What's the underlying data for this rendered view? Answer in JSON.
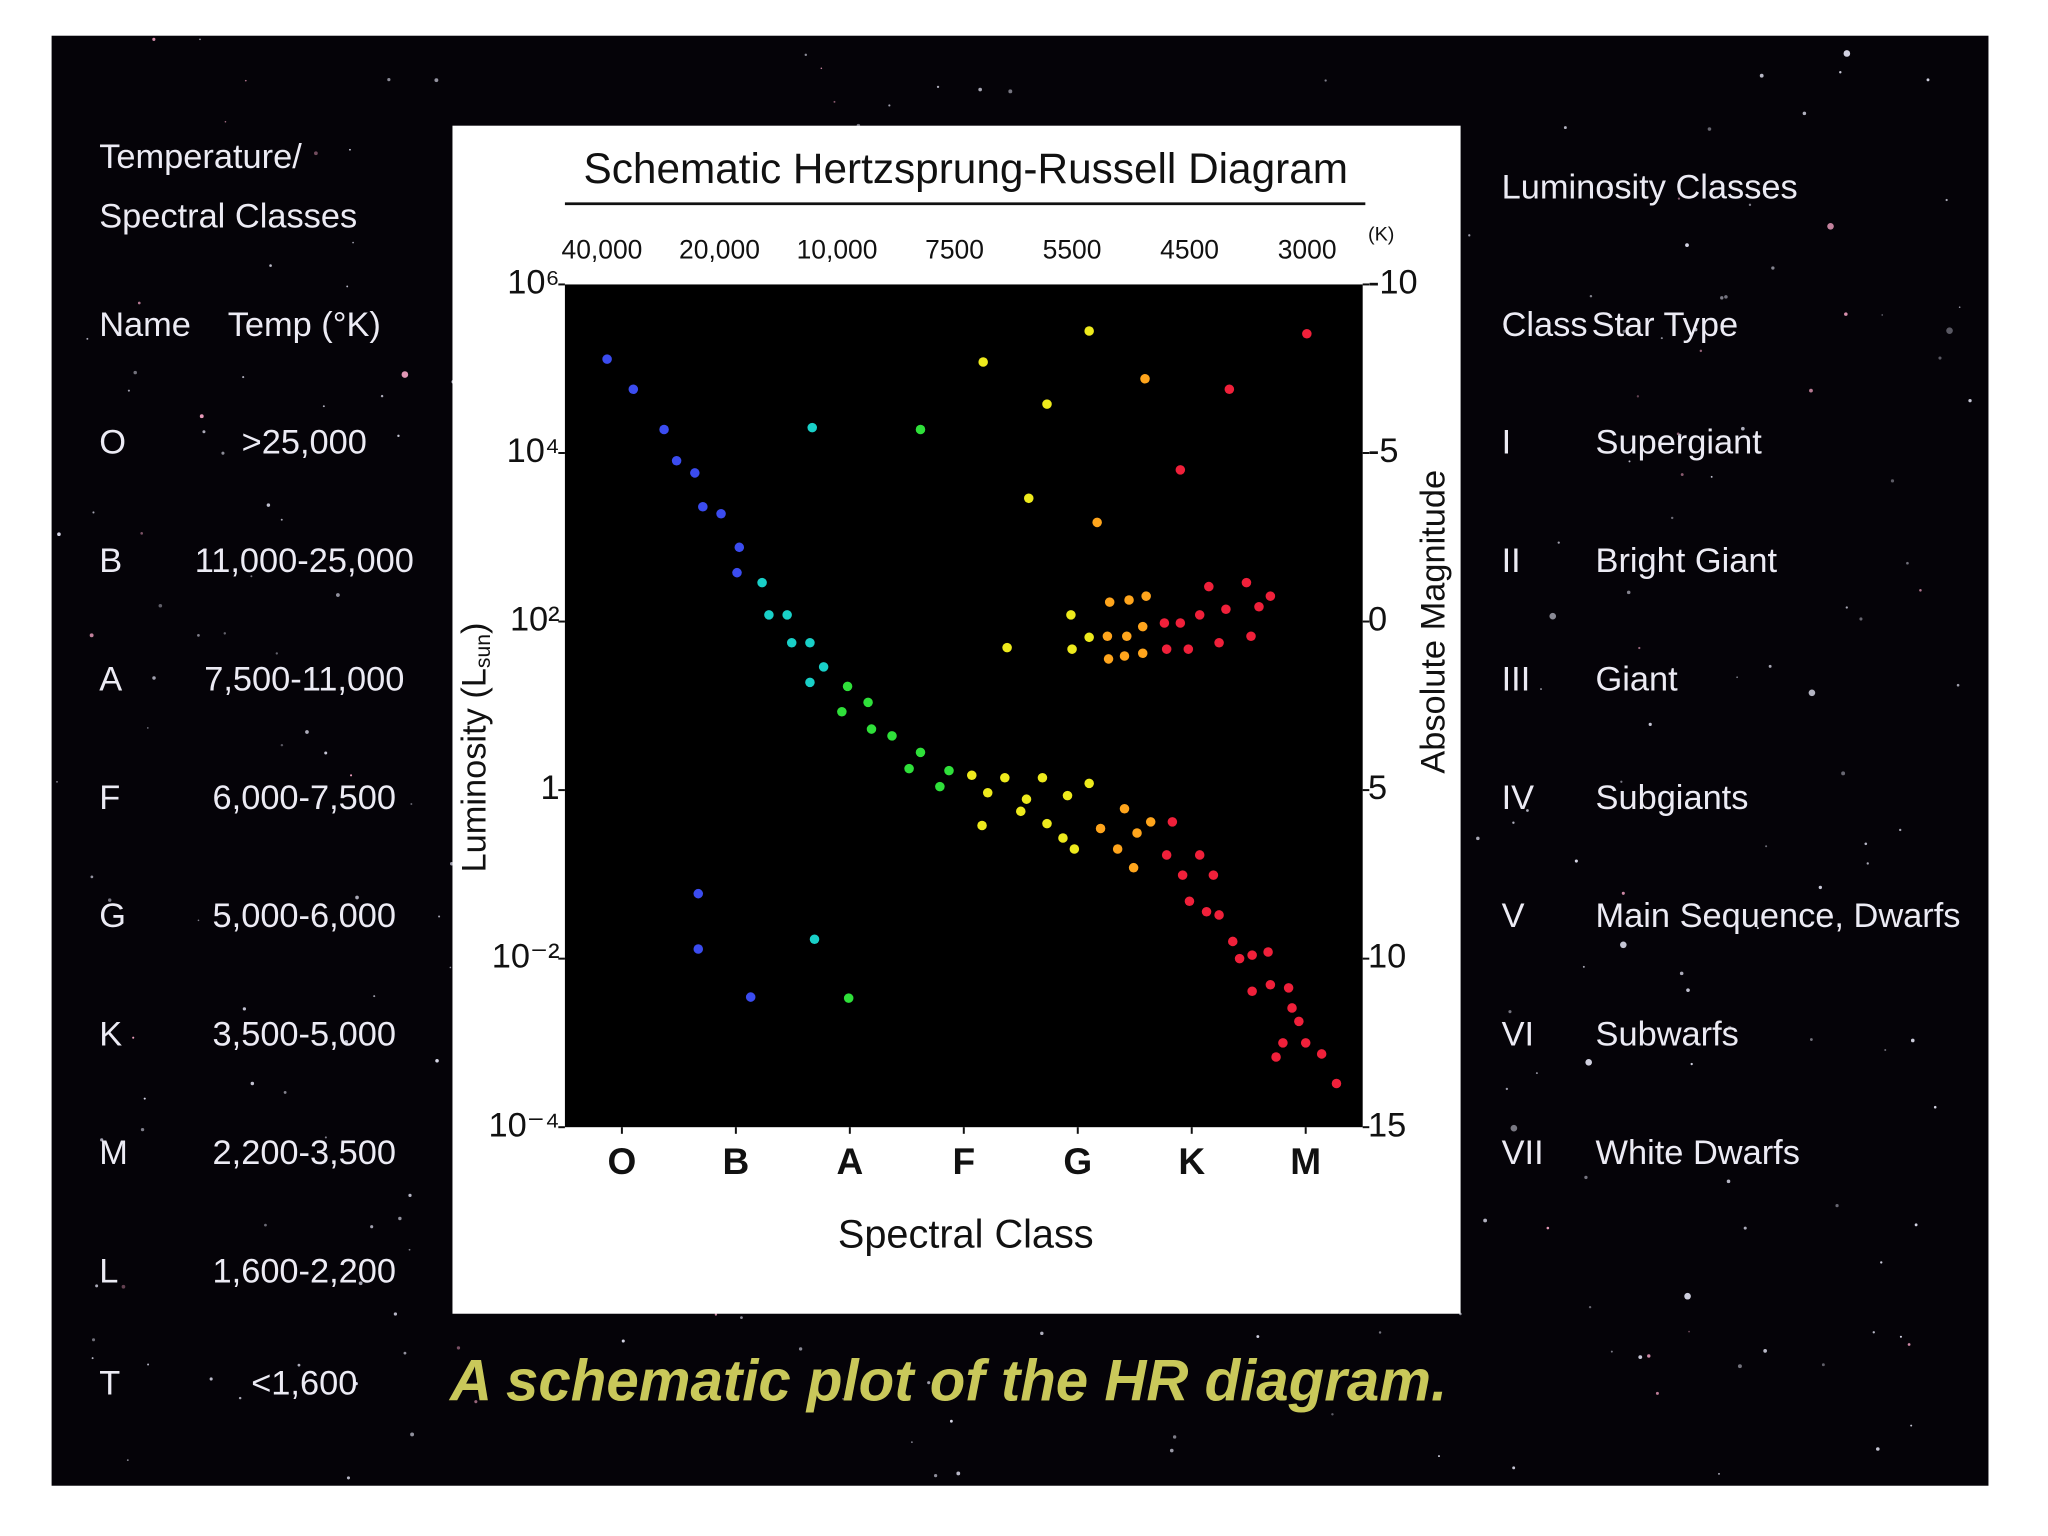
{
  "left_panel": {
    "title": [
      "Temperature/",
      "Spectral Classes"
    ],
    "header": [
      "Name",
      "Temp (°K)"
    ],
    "rows": [
      [
        "O",
        ">25,000"
      ],
      [
        "B",
        "11,000-25,000"
      ],
      [
        "A",
        "7,500-11,000"
      ],
      [
        "F",
        "6,000-7,500"
      ],
      [
        "G",
        "5,000-6,000"
      ],
      [
        "K",
        "3,500-5,000"
      ],
      [
        "M",
        "2,200-3,500"
      ],
      [
        "L",
        "1,600-2,200"
      ],
      [
        "T",
        "<1,600"
      ]
    ]
  },
  "right_panel": {
    "title": "Luminosity Classes",
    "header": [
      "Class",
      "Star Type"
    ],
    "rows": [
      [
        "I",
        "Supergiant"
      ],
      [
        "II",
        "Bright Giant"
      ],
      [
        "III",
        "Giant"
      ],
      [
        "IV",
        "Subgiants"
      ],
      [
        "V",
        "Main Sequence, Dwarfs"
      ],
      [
        "VI",
        "Subwarfs"
      ],
      [
        "VII",
        "White Dwarfs"
      ]
    ]
  },
  "caption": "A schematic plot of the HR diagram.",
  "chart_data": {
    "type": "scatter",
    "title": "Schematic Hertzsprung-Russell Diagram",
    "x_label": "Spectral Class",
    "y_label": {
      "text": "Luminosity (L",
      "subscript": "sun",
      "close": ")"
    },
    "y2_label": "Absolute Magnitude",
    "top_labels": [
      "40,000",
      "20,000",
      "10,000",
      "7500",
      "5500",
      "4500",
      "3000"
    ],
    "top_unit": "(K)",
    "xlim": [
      -0.5,
      6.5
    ],
    "xticks": [
      {
        "value": 0,
        "label": "O"
      },
      {
        "value": 1,
        "label": "B"
      },
      {
        "value": 2,
        "label": "A"
      },
      {
        "value": 3,
        "label": "F"
      },
      {
        "value": 4,
        "label": "G"
      },
      {
        "value": 5,
        "label": "K"
      },
      {
        "value": 6,
        "label": "M"
      }
    ],
    "y_scale": "log",
    "ylim": [
      0.0001,
      1000000
    ],
    "yticks": [
      {
        "value": 1000000,
        "label": "10⁶"
      },
      {
        "value": 10000,
        "label": "10⁴"
      },
      {
        "value": 100,
        "label": "10²"
      },
      1,
      {
        "value": 0.01,
        "label": "10⁻²"
      },
      {
        "value": 0.0001,
        "label": "10⁻⁴"
      }
    ],
    "y2lim": [
      15,
      -10
    ],
    "y2ticks": [
      -10,
      -5,
      0,
      5,
      10,
      15
    ],
    "series": [
      {
        "color": "#3b4cf0",
        "x": [
          -0.13,
          0.1,
          0.37,
          0.48,
          0.64,
          0.71,
          0.87,
          1.03,
          1.01,
          0.67,
          0.67,
          1.13
        ],
        "values": [
          130000,
          57000,
          19000,
          8100,
          5800,
          2300,
          1900,
          760,
          380,
          0.059,
          0.013,
          0.0035
        ]
      },
      {
        "color": "#19d0c8",
        "x": [
          1.67,
          1.23,
          1.29,
          1.45,
          1.49,
          1.65,
          1.65,
          1.77,
          1.69
        ],
        "values": [
          20000,
          290,
          120,
          120,
          56,
          56,
          19,
          29,
          0.017
        ]
      },
      {
        "color": "#2fe03a",
        "x": [
          2.62,
          1.98,
          1.93,
          2.16,
          2.19,
          2.37,
          2.52,
          2.62,
          2.79,
          2.87,
          1.99
        ],
        "values": [
          19000,
          17,
          8.5,
          11,
          5.3,
          4.4,
          1.8,
          2.8,
          1.1,
          1.7,
          0.0034
        ]
      },
      {
        "color": "#eeea1c",
        "x": [
          3.17,
          4.1,
          3.73,
          3.57,
          3.38,
          3.07,
          3.21,
          3.16,
          3.36,
          3.5,
          3.55,
          3.69,
          3.73,
          3.91,
          3.95,
          4.1,
          3.94,
          4.1,
          3.87,
          3.97
        ],
        "values": [
          120000,
          280000,
          38000,
          2900,
          49,
          1.5,
          0.93,
          0.38,
          1.4,
          0.56,
          0.78,
          1.4,
          0.4,
          0.86,
          47,
          65,
          120,
          1.2,
          0.27,
          0.2
        ]
      },
      {
        "color": "#ffa51c",
        "x": [
          4.59,
          4.17,
          4.28,
          4.45,
          4.6,
          4.26,
          4.43,
          4.57,
          4.27,
          4.41,
          4.57,
          4.41,
          4.2,
          4.35,
          4.52,
          4.49,
          4.64
        ],
        "values": [
          76000,
          1500,
          170,
          180,
          200,
          67,
          67,
          87,
          36,
          39,
          42,
          0.6,
          0.35,
          0.2,
          0.31,
          0.12,
          0.42
        ]
      },
      {
        "color": "#f0203a",
        "x": [
          6.01,
          5.33,
          4.9,
          4.76,
          4.9,
          4.78,
          4.97,
          5.15,
          5.3,
          5.48,
          5.59,
          5.69,
          5.52,
          5.24,
          5.07,
          4.83,
          4.78,
          4.92,
          5.07,
          5.19,
          4.98,
          5.13,
          5.24,
          5.36,
          5.42,
          5.53,
          5.67,
          5.53,
          5.69,
          5.85,
          5.88,
          5.94,
          5.8,
          6.0,
          6.14,
          6.27,
          5.74
        ],
        "values": [
          260000,
          57000,
          6300,
          96,
          96,
          47,
          47,
          260,
          140,
          290,
          150,
          200,
          67,
          56,
          120,
          0.42,
          0.17,
          0.098,
          0.17,
          0.098,
          0.048,
          0.036,
          0.033,
          0.016,
          0.01,
          0.011,
          0.012,
          0.0041,
          0.0049,
          0.0045,
          0.0026,
          0.0018,
          0.001,
          0.001,
          0.00074,
          0.00033,
          0.00068
        ]
      }
    ]
  }
}
